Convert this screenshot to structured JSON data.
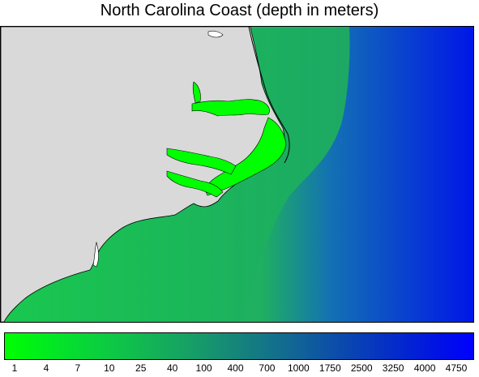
{
  "title": "North Carolina Coast (depth in meters)",
  "colors": {
    "land": "#d9d9d9",
    "shallow": "#00ff00",
    "mid": "#1fb85a",
    "deep": "#0a3cd2",
    "deepest": "#0000ff",
    "coastline": "#000000"
  },
  "colorbar": {
    "labels": [
      "1",
      "4",
      "7",
      "10",
      "25",
      "40",
      "100",
      "400",
      "700",
      "1000",
      "1750",
      "2500",
      "3250",
      "4000",
      "4750"
    ],
    "stops": [
      "#00ff00",
      "#00f018",
      "#05df2d",
      "#0bcf3e",
      "#10bf4c",
      "#14ae5a",
      "#169e67",
      "#168c74",
      "#147b82",
      "#126a91",
      "#0e58a0",
      "#0a46b0",
      "#0634c1",
      "#0222d3",
      "#0010e6",
      "#0000ff"
    ]
  }
}
